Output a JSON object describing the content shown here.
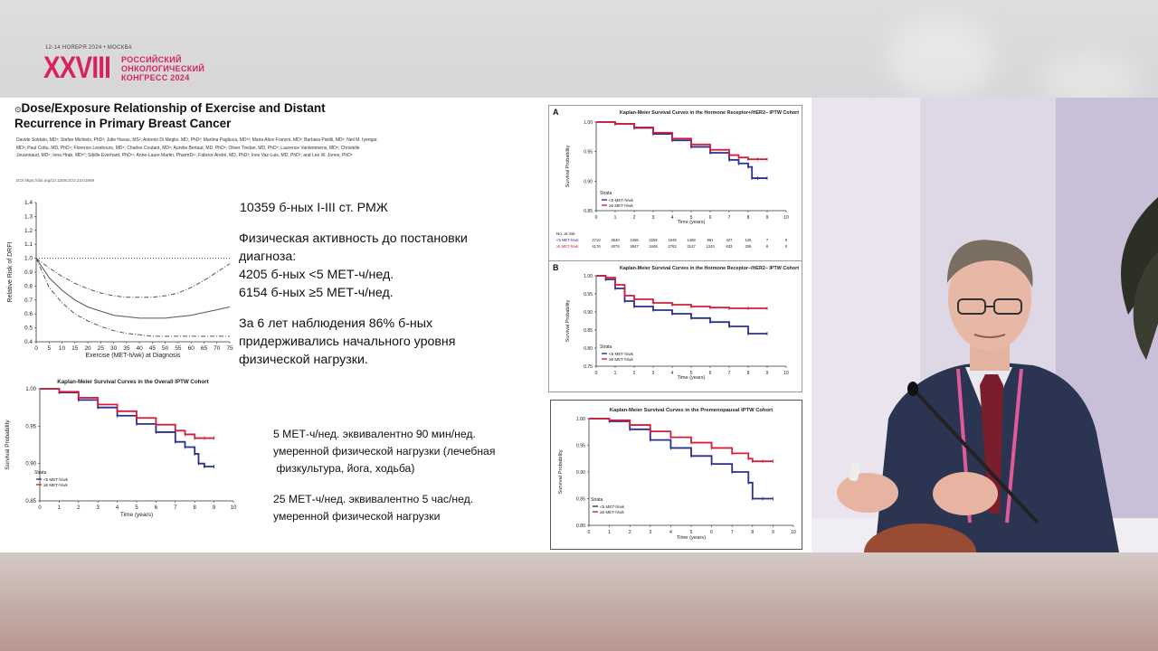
{
  "conference": {
    "dates": "12-14 НОЯБРЯ 2024 • МОСКВА",
    "numeral": "XXVIII",
    "name_lines": [
      "РОССИЙСКИЙ",
      "ОНКОЛОГИЧЕСКИЙ",
      "КОНГРЕСС 2024"
    ],
    "brand_color": "#d7235c"
  },
  "slide": {
    "title": "Dose/Exposure Relationship of Exercise and Distant Recurrence in Primary Breast Cancer",
    "authors": "Davide Soldato, MD¹; Stefan Michiels, PhD²; Julie Havas, MS²; Antonio Di Meglio, MD, PhD²; Martina Pagliuca, MD¹²; Maria Alice Franzoi, MD²; Barbara Pistilli, MD²; Neil M. Iyengar, MD³; Paul Cottu, MD, PhD⁴; Florence Lerebours, MD⁵; Charles Coutant, MD⁶; Aurelie Bertaut, MD, PhD⁶; Oliver Tredan, MD, PhD⁷; Laurence Vanlemmens, MD⁸; Christelle Jouannaud, MD⁹; Iona Hrab, MD¹⁰; Sibille Everhard, PhD¹¹; Anne-Laure Martin, PharmD¹¹; Fabrice André, MD, PhD²; Ines Vaz-Luis, MD, PhD²; and Lee W. Jones, PhD³",
    "doi": "DOI https://doi.org/10.1200/JCO.23.01959",
    "text_blocks": {
      "cohort": "10359 б-ных I-III ст. РМЖ",
      "activity_line1": "Физическая активность до постановки",
      "activity_line2": "диагноза:",
      "group_low": "4205 б-ных <5 МЕТ-ч/нед.",
      "group_high": "6154 б-ных ≥5 МЕТ-ч/нед.",
      "followup_line1": "За 6 лет наблюдения 86% б-ных",
      "followup_line2": "придерживались  начального уровня",
      "followup_line3": "физической нагрузки.",
      "equiv1_line1": "5 МЕТ-ч/нед. эквивалентно 90  мин/нед.",
      "equiv1_line2": "умеренной физической нагрузки (лечебная",
      "equiv1_line3": " физкультура, йога, ходьба)",
      "equiv2_line1": "25 МЕТ-ч/нед. эквивалентно 5  час/нед.",
      "equiv2_line2": "умеренной физической нагрузки"
    }
  },
  "colors": {
    "low_met": "#2b2f8f",
    "high_met": "#d41f3a",
    "curve": "#555555"
  },
  "chart_data": [
    {
      "type": "line",
      "xlabel": "Exercise (MET-h/wk) at Diagnosis",
      "ylabel": "Relative Risk of DRFI",
      "xticks": [
        0,
        5,
        10,
        15,
        20,
        25,
        30,
        35,
        40,
        45,
        50,
        55,
        60,
        65,
        70,
        75
      ],
      "yticks": [
        0.4,
        0.5,
        0.6,
        0.7,
        0.8,
        0.9,
        1.0,
        1.1,
        1.2,
        1.3,
        1.4
      ],
      "ylim": [
        0.4,
        1.4
      ],
      "xlim": [
        0,
        75
      ],
      "series": [
        {
          "style": "solid",
          "x": [
            0,
            5,
            10,
            15,
            20,
            25,
            30,
            35,
            40,
            45,
            50,
            55,
            60,
            65,
            70,
            75
          ],
          "y": [
            1.0,
            0.86,
            0.77,
            0.7,
            0.65,
            0.62,
            0.59,
            0.58,
            0.57,
            0.57,
            0.57,
            0.58,
            0.59,
            0.61,
            0.63,
            0.65
          ]
        },
        {
          "style": "dashdot",
          "x": [
            0,
            5,
            10,
            15,
            20,
            25,
            30,
            35,
            40,
            45,
            50,
            55,
            60,
            65,
            70,
            75
          ],
          "y": [
            1.0,
            0.93,
            0.87,
            0.82,
            0.78,
            0.75,
            0.73,
            0.72,
            0.72,
            0.72,
            0.73,
            0.75,
            0.79,
            0.84,
            0.9,
            0.96
          ]
        },
        {
          "style": "dashdot",
          "x": [
            0,
            5,
            10,
            15,
            20,
            25,
            30,
            35,
            40,
            45,
            50,
            55,
            60,
            65,
            70,
            75
          ],
          "y": [
            1.0,
            0.79,
            0.68,
            0.6,
            0.55,
            0.51,
            0.48,
            0.46,
            0.45,
            0.44,
            0.44,
            0.44,
            0.44,
            0.44,
            0.44,
            0.44
          ]
        },
        {
          "style": "dotted",
          "x": [
            0,
            75
          ],
          "y": [
            1.0,
            1.0
          ]
        }
      ]
    },
    {
      "type": "line",
      "title": "Kaplan-Meier Survival Curves in the Overall IPTW Cohort",
      "xlabel": "Time (years)",
      "ylabel": "Survival Probability",
      "xticks": [
        0,
        1,
        2,
        3,
        4,
        5,
        6,
        7,
        8,
        9,
        10
      ],
      "yticks": [
        0.85,
        0.9,
        0.95,
        1.0
      ],
      "xlim": [
        0,
        10
      ],
      "ylim": [
        0.85,
        1.0
      ],
      "legend_title": "Strata",
      "legend_position": "bottom-left",
      "series": [
        {
          "name": "<5 MET-h/wk",
          "color": "#2b2f8f",
          "x": [
            0,
            1,
            2,
            3,
            4,
            5,
            6,
            7,
            7.5,
            8,
            8.2,
            8.5,
            9
          ],
          "y": [
            1.0,
            0.995,
            0.985,
            0.975,
            0.964,
            0.953,
            0.942,
            0.929,
            0.922,
            0.913,
            0.9,
            0.896,
            0.896
          ]
        },
        {
          "name": "≥5 MET-h/wk",
          "color": "#d41f3a",
          "x": [
            0,
            1,
            2,
            3,
            4,
            5,
            6,
            7,
            7.5,
            8,
            8.5,
            9
          ],
          "y": [
            1.0,
            0.996,
            0.988,
            0.979,
            0.97,
            0.961,
            0.952,
            0.944,
            0.939,
            0.934,
            0.934,
            0.934
          ]
        }
      ]
    },
    {
      "type": "line",
      "panel_label": "A",
      "title": "Kaplan-Meier Survival Curves in the Hormone Receptor+/HER2– IPTW Cohort",
      "xlabel": "Time (years)",
      "ylabel": "Survival Probability",
      "xticks": [
        0,
        1,
        2,
        3,
        4,
        5,
        6,
        7,
        8,
        9,
        10
      ],
      "yticks": [
        0.85,
        0.9,
        0.95,
        1.0
      ],
      "xlim": [
        0,
        10
      ],
      "ylim": [
        0.85,
        1.0
      ],
      "legend_title": "Strata",
      "series": [
        {
          "name": "<5 MET-h/wk",
          "color": "#2b2f8f",
          "x": [
            0,
            1,
            2,
            3,
            4,
            5,
            6,
            7,
            7.5,
            8,
            8.2,
            8.5,
            9
          ],
          "y": [
            1.0,
            0.997,
            0.99,
            0.98,
            0.969,
            0.958,
            0.948,
            0.936,
            0.93,
            0.924,
            0.905,
            0.905,
            0.905
          ]
        },
        {
          "name": "≥5 MET-h/wk",
          "color": "#d41f3a",
          "x": [
            0,
            1,
            2,
            3,
            4,
            5,
            6,
            7,
            7.5,
            8,
            8.5,
            9
          ],
          "y": [
            1.0,
            0.997,
            0.991,
            0.982,
            0.972,
            0.962,
            0.953,
            0.944,
            0.94,
            0.937,
            0.937,
            0.937
          ]
        }
      ],
      "risk_table": {
        "header": "No. at risk",
        "rows": [
          {
            "label": "<5 MET-h/wk",
            "values": [
              "2710",
              "3640",
              "2406",
              "2259",
              "1848",
              "1468",
              "961",
              "427",
              "125",
              "7",
              "0"
            ]
          },
          {
            "label": "≥5 MET-h/wk",
            "values": [
              "4176",
              "4075",
              "3847",
              "3448",
              "2762",
              "2147",
              "1343",
              "633",
              "206",
              "8",
              "0"
            ]
          }
        ]
      }
    },
    {
      "type": "line",
      "panel_label": "B",
      "title": "Kaplan-Meier Survival Curves in the Hormone Receptor–/HER2– IPTW Cohort",
      "xlabel": "Time (years)",
      "ylabel": "Survival Probability",
      "xticks": [
        0,
        1,
        2,
        3,
        4,
        5,
        6,
        7,
        8,
        9,
        10
      ],
      "yticks": [
        0.75,
        0.8,
        0.85,
        0.9,
        0.95,
        1.0
      ],
      "xlim": [
        0,
        10
      ],
      "ylim": [
        0.75,
        1.0
      ],
      "legend_title": "Strata",
      "series": [
        {
          "name": "<5 MET-h/wk",
          "color": "#2b2f8f",
          "x": [
            0,
            0.5,
            1,
            1.5,
            2,
            3,
            4,
            5,
            6,
            7,
            8,
            9
          ],
          "y": [
            1.0,
            0.99,
            0.965,
            0.93,
            0.915,
            0.905,
            0.895,
            0.883,
            0.872,
            0.86,
            0.84,
            0.84
          ]
        },
        {
          "name": "≥5 MET-h/wk",
          "color": "#d41f3a",
          "x": [
            0,
            0.5,
            1,
            1.5,
            2,
            3,
            4,
            5,
            6,
            7,
            8,
            9
          ],
          "y": [
            1.0,
            0.995,
            0.975,
            0.945,
            0.935,
            0.925,
            0.92,
            0.915,
            0.912,
            0.91,
            0.91,
            0.91
          ]
        }
      ]
    },
    {
      "type": "line",
      "title": "Kaplan-Meier Survival Curves in the Premenopausal IPTW Cohort",
      "xlabel": "Time (years)",
      "ylabel": "Survival Probability",
      "xticks": [
        0,
        1,
        2,
        3,
        4,
        5,
        6,
        7,
        8,
        9,
        10
      ],
      "yticks": [
        0.8,
        0.85,
        0.9,
        0.95,
        1.0
      ],
      "xlim": [
        0,
        10
      ],
      "ylim": [
        0.8,
        1.0
      ],
      "legend_title": "Strata",
      "series": [
        {
          "name": "<5 MET-h/wk",
          "color": "#2b2f8f",
          "x": [
            0,
            1,
            2,
            3,
            4,
            5,
            6,
            7,
            7.8,
            8,
            8.5,
            9
          ],
          "y": [
            1.0,
            0.995,
            0.98,
            0.96,
            0.945,
            0.93,
            0.915,
            0.9,
            0.88,
            0.85,
            0.85,
            0.85
          ]
        },
        {
          "name": "≥5 MET-h/wk",
          "color": "#d41f3a",
          "x": [
            0,
            1,
            2,
            3,
            4,
            5,
            6,
            7,
            7.8,
            8,
            8.5,
            9
          ],
          "y": [
            1.0,
            0.997,
            0.988,
            0.976,
            0.965,
            0.955,
            0.945,
            0.935,
            0.925,
            0.92,
            0.92,
            0.92
          ]
        }
      ]
    }
  ]
}
